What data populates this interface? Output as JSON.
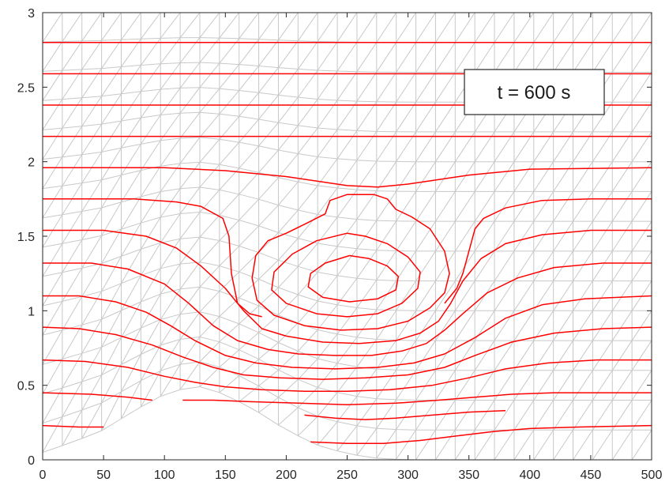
{
  "chart_data": {
    "type": "line",
    "title": "",
    "xlabel": "",
    "ylabel": "",
    "xlim": [
      0,
      500
    ],
    "ylim": [
      0,
      3
    ],
    "xticks": [
      0,
      50,
      100,
      150,
      200,
      250,
      300,
      350,
      400,
      450,
      500
    ],
    "yticks": [
      0,
      0.5,
      1,
      1.5,
      2,
      2.5,
      3
    ],
    "xtick_labels": [
      "0",
      "50",
      "100",
      "150",
      "200",
      "250",
      "300",
      "350",
      "400",
      "450",
      "500"
    ],
    "ytick_labels": [
      "0",
      "0.5",
      "1",
      "1.5",
      "2",
      "2.5",
      "3"
    ],
    "grid": false,
    "annotation": {
      "text": "t = 600 s"
    },
    "topography": {
      "description_shape": "bump",
      "x": [
        0,
        25,
        50,
        75,
        100,
        125,
        150,
        175,
        200,
        225,
        250,
        275,
        300,
        325,
        500
      ],
      "y": [
        0.05,
        0.12,
        0.2,
        0.33,
        0.44,
        0.5,
        0.44,
        0.33,
        0.2,
        0.1,
        0.04,
        0.01,
        0,
        0,
        0
      ]
    },
    "mesh": {
      "columns": 31,
      "rows": 15,
      "dx": 16.667,
      "x_spacing_note": ""
    },
    "colors": {
      "contour": "#ff0000",
      "mesh": "#c8c8c8",
      "axes": "#262626"
    },
    "contours": [
      {
        "points": [
          [
            0,
            2.8
          ],
          [
            500,
            2.8
          ]
        ]
      },
      {
        "points": [
          [
            0,
            2.59
          ],
          [
            500,
            2.59
          ]
        ]
      },
      {
        "points": [
          [
            0,
            2.38
          ],
          [
            500,
            2.38
          ]
        ]
      },
      {
        "points": [
          [
            0,
            2.17
          ],
          [
            500,
            2.17
          ]
        ]
      },
      {
        "points": [
          [
            0,
            1.96
          ],
          [
            100,
            1.96
          ],
          [
            150,
            1.94
          ],
          [
            200,
            1.9
          ],
          [
            250,
            1.84
          ],
          [
            275,
            1.83
          ],
          [
            300,
            1.85
          ],
          [
            350,
            1.91
          ],
          [
            400,
            1.95
          ],
          [
            500,
            1.96
          ]
        ]
      },
      {
        "points": [
          [
            0,
            1.75
          ],
          [
            75,
            1.75
          ],
          [
            110,
            1.73
          ],
          [
            130,
            1.7
          ],
          [
            148,
            1.62
          ],
          [
            153,
            1.5
          ],
          [
            155,
            1.25
          ],
          [
            160,
            1.05
          ],
          [
            170,
            0.98
          ],
          [
            180,
            0.96
          ]
        ]
      },
      {
        "points": [
          [
            500,
            1.75
          ],
          [
            450,
            1.75
          ],
          [
            410,
            1.74
          ],
          [
            380,
            1.69
          ],
          [
            362,
            1.62
          ],
          [
            355,
            1.55
          ],
          [
            350,
            1.4
          ],
          [
            345,
            1.25
          ],
          [
            340,
            1.15
          ],
          [
            330,
            1.05
          ]
        ]
      },
      {
        "points": [
          [
            0,
            1.54
          ],
          [
            50,
            1.54
          ],
          [
            85,
            1.5
          ],
          [
            110,
            1.42
          ],
          [
            130,
            1.3
          ],
          [
            150,
            1.15
          ],
          [
            165,
            1.0
          ],
          [
            180,
            0.88
          ],
          [
            200,
            0.83
          ],
          [
            230,
            0.79
          ],
          [
            260,
            0.78
          ],
          [
            290,
            0.8
          ],
          [
            310,
            0.85
          ],
          [
            325,
            0.93
          ],
          [
            335,
            1.05
          ],
          [
            345,
            1.2
          ],
          [
            360,
            1.35
          ],
          [
            380,
            1.45
          ],
          [
            410,
            1.51
          ],
          [
            450,
            1.54
          ],
          [
            500,
            1.54
          ]
        ]
      },
      {
        "points": [
          [
            0,
            1.32
          ],
          [
            40,
            1.32
          ],
          [
            70,
            1.28
          ],
          [
            100,
            1.18
          ],
          [
            120,
            1.05
          ],
          [
            140,
            0.9
          ],
          [
            160,
            0.8
          ],
          [
            185,
            0.74
          ],
          [
            210,
            0.71
          ],
          [
            240,
            0.7
          ],
          [
            270,
            0.7
          ],
          [
            295,
            0.73
          ],
          [
            315,
            0.78
          ],
          [
            330,
            0.87
          ],
          [
            345,
            0.98
          ],
          [
            365,
            1.12
          ],
          [
            390,
            1.22
          ],
          [
            420,
            1.29
          ],
          [
            460,
            1.32
          ],
          [
            500,
            1.32
          ]
        ]
      },
      {
        "points": [
          [
            0,
            1.1
          ],
          [
            30,
            1.1
          ],
          [
            60,
            1.06
          ],
          [
            85,
            0.99
          ],
          [
            105,
            0.9
          ],
          [
            125,
            0.8
          ],
          [
            150,
            0.7
          ],
          [
            175,
            0.65
          ],
          [
            205,
            0.62
          ],
          [
            240,
            0.61
          ],
          [
            275,
            0.62
          ],
          [
            305,
            0.65
          ],
          [
            330,
            0.71
          ],
          [
            355,
            0.82
          ],
          [
            380,
            0.95
          ],
          [
            410,
            1.04
          ],
          [
            445,
            1.08
          ],
          [
            500,
            1.1
          ]
        ]
      },
      {
        "points": [
          [
            0,
            0.89
          ],
          [
            30,
            0.88
          ],
          [
            60,
            0.84
          ],
          [
            90,
            0.77
          ],
          [
            115,
            0.69
          ],
          [
            140,
            0.62
          ],
          [
            165,
            0.57
          ],
          [
            195,
            0.55
          ],
          [
            230,
            0.54
          ],
          [
            265,
            0.55
          ],
          [
            300,
            0.57
          ],
          [
            330,
            0.62
          ],
          [
            355,
            0.7
          ],
          [
            385,
            0.79
          ],
          [
            420,
            0.85
          ],
          [
            460,
            0.88
          ],
          [
            500,
            0.89
          ]
        ]
      },
      {
        "points": [
          [
            0,
            0.67
          ],
          [
            35,
            0.66
          ],
          [
            70,
            0.62
          ],
          [
            100,
            0.56
          ],
          [
            125,
            0.52
          ],
          [
            150,
            0.49
          ],
          [
            180,
            0.47
          ],
          [
            215,
            0.46
          ],
          [
            250,
            0.46
          ],
          [
            285,
            0.47
          ],
          [
            320,
            0.5
          ],
          [
            350,
            0.55
          ],
          [
            380,
            0.61
          ],
          [
            415,
            0.65
          ],
          [
            455,
            0.67
          ],
          [
            500,
            0.67
          ]
        ]
      },
      {
        "points": [
          [
            0,
            0.45
          ],
          [
            40,
            0.44
          ],
          [
            70,
            0.42
          ],
          [
            90,
            0.4
          ]
        ]
      },
      {
        "points": [
          [
            115,
            0.4
          ],
          [
            140,
            0.4
          ],
          [
            170,
            0.39
          ],
          [
            210,
            0.38
          ],
          [
            250,
            0.37
          ],
          [
            290,
            0.38
          ],
          [
            325,
            0.4
          ],
          [
            355,
            0.42
          ],
          [
            385,
            0.44
          ],
          [
            420,
            0.45
          ],
          [
            460,
            0.45
          ],
          [
            500,
            0.45
          ]
        ]
      },
      {
        "points": [
          [
            0,
            0.23
          ],
          [
            30,
            0.22
          ],
          [
            50,
            0.22
          ]
        ]
      },
      {
        "points": [
          [
            215,
            0.3
          ],
          [
            240,
            0.28
          ],
          [
            265,
            0.27
          ],
          [
            290,
            0.28
          ],
          [
            320,
            0.3
          ],
          [
            350,
            0.32
          ],
          [
            380,
            0.33
          ]
        ]
      },
      {
        "points": [
          [
            220,
            0.12
          ],
          [
            250,
            0.11
          ],
          [
            280,
            0.11
          ],
          [
            310,
            0.13
          ],
          [
            340,
            0.16
          ],
          [
            370,
            0.19
          ],
          [
            400,
            0.21
          ],
          [
            440,
            0.22
          ],
          [
            500,
            0.23
          ]
        ]
      },
      {
        "points": [
          [
            272,
            1.78
          ],
          [
            250,
            1.78
          ],
          [
            236,
            1.74
          ],
          [
            232,
            1.65
          ],
          [
            215,
            1.58
          ],
          [
            200,
            1.52
          ],
          [
            185,
            1.47
          ],
          [
            175,
            1.37
          ],
          [
            172,
            1.22
          ],
          [
            176,
            1.07
          ],
          [
            190,
            0.97
          ],
          [
            215,
            0.9
          ],
          [
            245,
            0.87
          ],
          [
            275,
            0.88
          ],
          [
            300,
            0.93
          ],
          [
            318,
            1.02
          ],
          [
            330,
            1.12
          ],
          [
            334,
            1.25
          ],
          [
            330,
            1.4
          ],
          [
            318,
            1.55
          ],
          [
            303,
            1.63
          ],
          [
            290,
            1.68
          ],
          [
            283,
            1.75
          ],
          [
            272,
            1.78
          ]
        ]
      },
      {
        "points": [
          [
            250,
            1.52
          ],
          [
            225,
            1.47
          ],
          [
            205,
            1.38
          ],
          [
            190,
            1.26
          ],
          [
            188,
            1.14
          ],
          [
            200,
            1.05
          ],
          [
            225,
            0.98
          ],
          [
            250,
            0.96
          ],
          [
            275,
            0.98
          ],
          [
            295,
            1.05
          ],
          [
            308,
            1.15
          ],
          [
            310,
            1.26
          ],
          [
            300,
            1.36
          ],
          [
            283,
            1.45
          ],
          [
            265,
            1.5
          ],
          [
            250,
            1.52
          ]
        ]
      },
      {
        "points": [
          [
            252,
            1.37
          ],
          [
            232,
            1.32
          ],
          [
            220,
            1.25
          ],
          [
            218,
            1.16
          ],
          [
            230,
            1.09
          ],
          [
            252,
            1.06
          ],
          [
            275,
            1.08
          ],
          [
            290,
            1.14
          ],
          [
            292,
            1.23
          ],
          [
            283,
            1.3
          ],
          [
            268,
            1.35
          ],
          [
            252,
            1.37
          ]
        ]
      }
    ]
  }
}
